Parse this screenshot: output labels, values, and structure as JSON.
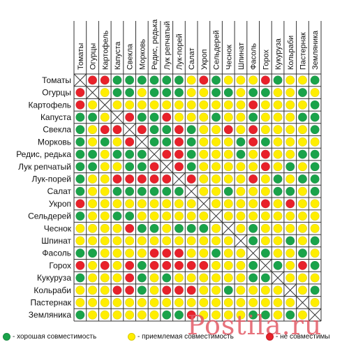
{
  "plants": [
    "Томаты",
    "Огурцы",
    "Картофель",
    "Капуста",
    "Свекла",
    "Морковь",
    "Редис, редька",
    "Лук репчатый",
    "Лук-порей",
    "Салат",
    "Укроп",
    "Сельдерей",
    "Чеснок",
    "Шпинат",
    "Фасоль",
    "Горох",
    "Кукуруза",
    "Кольраби",
    "Пастернак",
    "Земляника"
  ],
  "colors": {
    "good": "#1aa34a",
    "ok": "#ffee00",
    "bad": "#e8212a",
    "grid": "#333333",
    "diag": "#333333"
  },
  "legend": [
    {
      "key": "good",
      "label": "- хорошая совместимость"
    },
    {
      "key": "ok",
      "label": "- приемлемая совместимость"
    },
    {
      "key": "bad",
      "label": "- не совместимы"
    }
  ],
  "watermark": "Postila.ru",
  "chart_data": {
    "type": "table",
    "encoding": {
      "g": "good",
      "y": "ok",
      "r": "bad",
      "x": "diagonal"
    },
    "matrix": [
      "xrrggggggyrgyyyrgyyg",
      "rxyggygggyyggyggyygy",
      "ryxyyyyyyyyyyyryyyyg",
      "ggyxrggryyygyygyyygg",
      "gyrrxrggrgyyryryyyyg",
      "gygyrxggrgyyygrgyyyy",
      "ggygggxrrgyyygyryygg",
      "ggyyggrxrgyyyyyrygyg",
      "gyyrrrrrxryyyyrygygg",
      "gyyggggggxyygyyyggyg",
      "ryyyyyyyyyxyyyyryryy",
      "gyyggyyyyyyxyyyyyyyy",
      "yyyyrggygggyxygyyyyy",
      "yyyyyyyyyyyyyxgyygyg",
      "ggyyyyrrryygyyxgyygy",
      "ryryrgrrrrryyygxgyrg",
      "gyyyrgygyyyyyyggxyyy",
      "yyyrrgyrrryygyyyyxyg",
      "yyyyyyyyyyyyyyyyyyxy",
      "gyyyyyyggryyyyggygyx"
    ]
  }
}
